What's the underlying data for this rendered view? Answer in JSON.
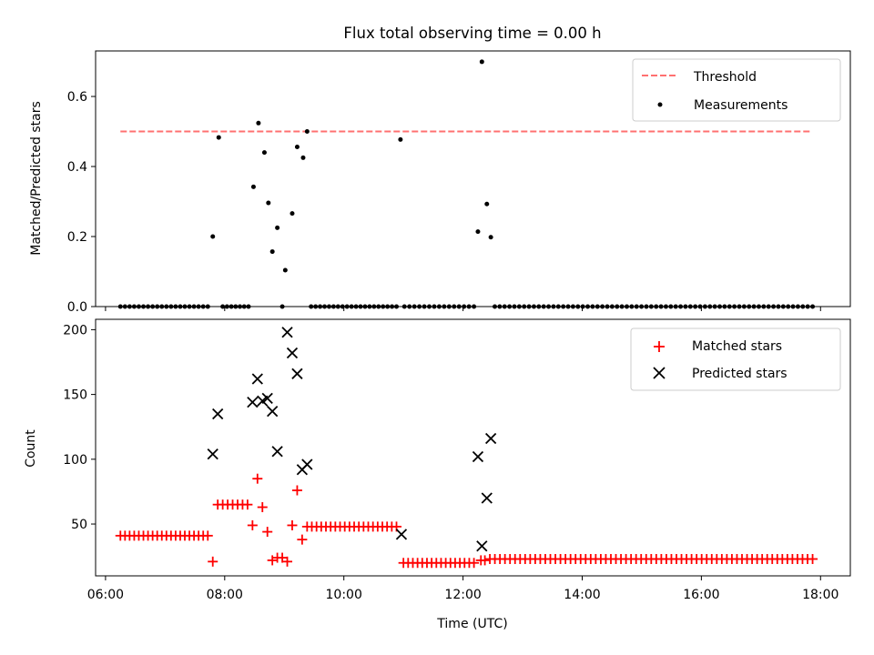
{
  "chart_data": [
    {
      "type": "scatter",
      "title": "Flux total observing time = 0.00 h",
      "xlabel": "",
      "ylabel": "Matched/Predicted stars",
      "xlim": [
        "05:50",
        "18:30"
      ],
      "ylim": [
        0,
        0.73
      ],
      "yticks": [
        0.0,
        0.2,
        0.4,
        0.6
      ],
      "yticklabels": [
        "0.0",
        "0.2",
        "0.4",
        "0.6"
      ],
      "grid": false,
      "legend_position": "top-right",
      "threshold": {
        "name": "Threshold",
        "value": 0.5,
        "x_range": [
          "06:15",
          "17:50"
        ],
        "color": "#ff7070",
        "style": "dashed"
      },
      "series": [
        {
          "name": "Measurements",
          "marker": "dot",
          "color": "#000000",
          "points": [
            [
              "07:48",
              0.2
            ],
            [
              "07:54",
              0.483
            ],
            [
              "08:29",
              0.342
            ],
            [
              "08:34",
              0.524
            ],
            [
              "08:40",
              0.44
            ],
            [
              "08:44",
              0.296
            ],
            [
              "08:48",
              0.157
            ],
            [
              "08:53",
              0.225
            ],
            [
              "09:01",
              0.104
            ],
            [
              "09:08",
              0.266
            ],
            [
              "09:13",
              0.456
            ],
            [
              "09:19",
              0.425
            ],
            [
              "09:23",
              0.5
            ],
            [
              "10:57",
              0.477
            ],
            [
              "12:15",
              0.214
            ],
            [
              "12:19",
              0.699
            ],
            [
              "12:24",
              0.293
            ],
            [
              "12:28",
              0.198
            ]
          ],
          "zero_runs": [
            {
              "from": "06:15",
              "to": "07:43",
              "count": 20
            },
            {
              "from": "07:58",
              "to": "08:24",
              "count": 7
            },
            {
              "from": "08:58",
              "to": "08:58",
              "count": 1
            },
            {
              "from": "09:27",
              "to": "10:53",
              "count": 20
            },
            {
              "from": "11:01",
              "to": "12:11",
              "count": 15
            },
            {
              "from": "12:32",
              "to": "17:52",
              "count": 66
            }
          ]
        }
      ]
    },
    {
      "type": "scatter",
      "title": "",
      "xlabel": "Time (UTC)",
      "ylabel": "Count",
      "xlim": [
        "05:50",
        "18:30"
      ],
      "ylim": [
        10,
        208
      ],
      "yticks": [
        50,
        100,
        150,
        200
      ],
      "xticks": [
        "06:00",
        "08:00",
        "10:00",
        "12:00",
        "14:00",
        "16:00",
        "18:00"
      ],
      "grid": false,
      "legend_position": "top-right",
      "series": [
        {
          "name": "Matched stars",
          "marker": "plus",
          "color": "#ff0000",
          "points": [
            [
              "07:48",
              21
            ],
            [
              "08:28",
              49
            ],
            [
              "08:33",
              85
            ],
            [
              "08:38",
              63
            ],
            [
              "08:43",
              44
            ],
            [
              "08:48",
              22
            ],
            [
              "08:53",
              24
            ],
            [
              "08:58",
              24
            ],
            [
              "09:03",
              21
            ],
            [
              "09:08",
              49
            ],
            [
              "09:13",
              76
            ],
            [
              "09:18",
              38
            ]
          ],
          "constant_runs": [
            {
              "from": "06:15",
              "to": "07:43",
              "count": 20,
              "value": 41
            },
            {
              "from": "07:53",
              "to": "08:23",
              "count": 7,
              "value": 65
            },
            {
              "from": "09:23",
              "to": "10:53",
              "count": 20,
              "value": 48
            },
            {
              "from": "11:00",
              "to": "12:11",
              "count": 16,
              "value": 20
            },
            {
              "from": "12:18",
              "to": "12:22",
              "count": 2,
              "value": 22
            },
            {
              "from": "12:27",
              "to": "17:52",
              "count": 65,
              "value": 23
            }
          ]
        },
        {
          "name": "Predicted stars",
          "marker": "x",
          "color": "#000000",
          "points": [
            [
              "07:48",
              104
            ],
            [
              "07:53",
              135
            ],
            [
              "08:28",
              144
            ],
            [
              "08:33",
              162
            ],
            [
              "08:38",
              145
            ],
            [
              "08:43",
              147
            ],
            [
              "08:48",
              137
            ],
            [
              "08:53",
              106
            ],
            [
              "09:03",
              198
            ],
            [
              "09:08",
              182
            ],
            [
              "09:13",
              166
            ],
            [
              "09:18",
              92
            ],
            [
              "09:23",
              96
            ],
            [
              "10:58",
              42
            ],
            [
              "12:15",
              102
            ],
            [
              "12:19",
              33
            ],
            [
              "12:24",
              70
            ],
            [
              "12:28",
              116
            ]
          ]
        }
      ]
    }
  ]
}
